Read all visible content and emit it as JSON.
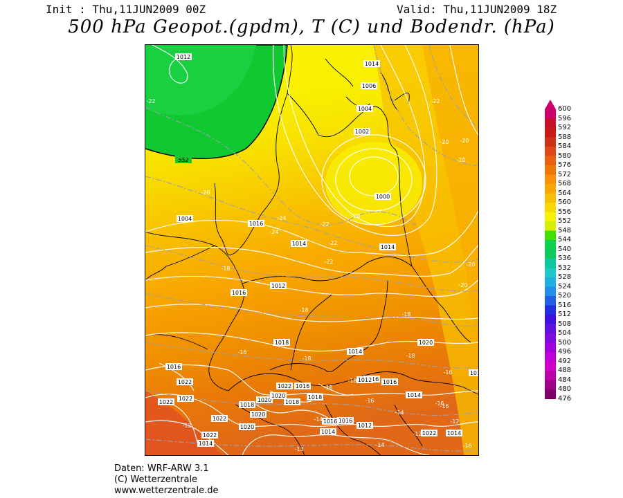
{
  "header": {
    "init": "Init : Thu,11JUN2009 00Z",
    "valid": "Valid: Thu,11JUN2009 18Z",
    "title": "500 hPa Geopot.(gpdm), T (C) und Bodendr. (hPa)"
  },
  "legend": {
    "levels": [
      "600",
      "596",
      "592",
      "588",
      "584",
      "580",
      "576",
      "572",
      "568",
      "564",
      "560",
      "556",
      "552",
      "548",
      "544",
      "540",
      "536",
      "532",
      "528",
      "524",
      "520",
      "516",
      "512",
      "508",
      "504",
      "500",
      "496",
      "492",
      "488",
      "484",
      "480",
      "476"
    ],
    "colors": [
      "#d0006a",
      "#c8102a",
      "#c81818",
      "#d03018",
      "#e04818",
      "#e86010",
      "#f07808",
      "#f89008",
      "#f8a800",
      "#f8c000",
      "#f8d800",
      "#f8f000",
      "#d8f000",
      "#40e000",
      "#10d050",
      "#10c860",
      "#10c8a0",
      "#20c8c8",
      "#20b0e0",
      "#2090e8",
      "#2060e8",
      "#2030e0",
      "#4010e0",
      "#6010e0",
      "#8008e0",
      "#a000e0",
      "#c000d8",
      "#d000c8",
      "#c000a8",
      "#a00088",
      "#800068",
      "#600050"
    ]
  },
  "map": {
    "geopotential_contour_label": "552",
    "pressure_labels": [
      "1012",
      "1014",
      "1006",
      "1004",
      "1002",
      "1000",
      "1004",
      "1016",
      "1014",
      "1014",
      "1012",
      "1016",
      "1018",
      "1014",
      "1020",
      "1016",
      "1016",
      "1022",
      "1022",
      "1022",
      "1022",
      "1022",
      "1022",
      "1020",
      "1018",
      "1018",
      "1016",
      "1016",
      "1014",
      "1012",
      "1014",
      "1016",
      "1022",
      "1018",
      "1020",
      "1020",
      "1020",
      "1016",
      "1016",
      "1012",
      "1014",
      "1014"
    ],
    "temperature_labels": [
      "-22",
      "-26",
      "-24",
      "-24",
      "-22",
      "-22",
      "-22",
      "-20",
      "-22",
      "-20",
      "-20",
      "-20",
      "-20",
      "-20",
      "-18",
      "-18",
      "-18",
      "-18",
      "-18",
      "-18",
      "-16",
      "-18",
      "-16",
      "-16",
      "-16",
      "-14",
      "-14",
      "-12",
      "-12",
      "-12",
      "-13",
      "-14",
      "-16",
      "-16"
    ]
  },
  "footer": {
    "line1": "Daten: WRF-ARW 3.1",
    "line2": "(C) Wetterzentrale",
    "line3": "www.wetterzentrale.de"
  }
}
